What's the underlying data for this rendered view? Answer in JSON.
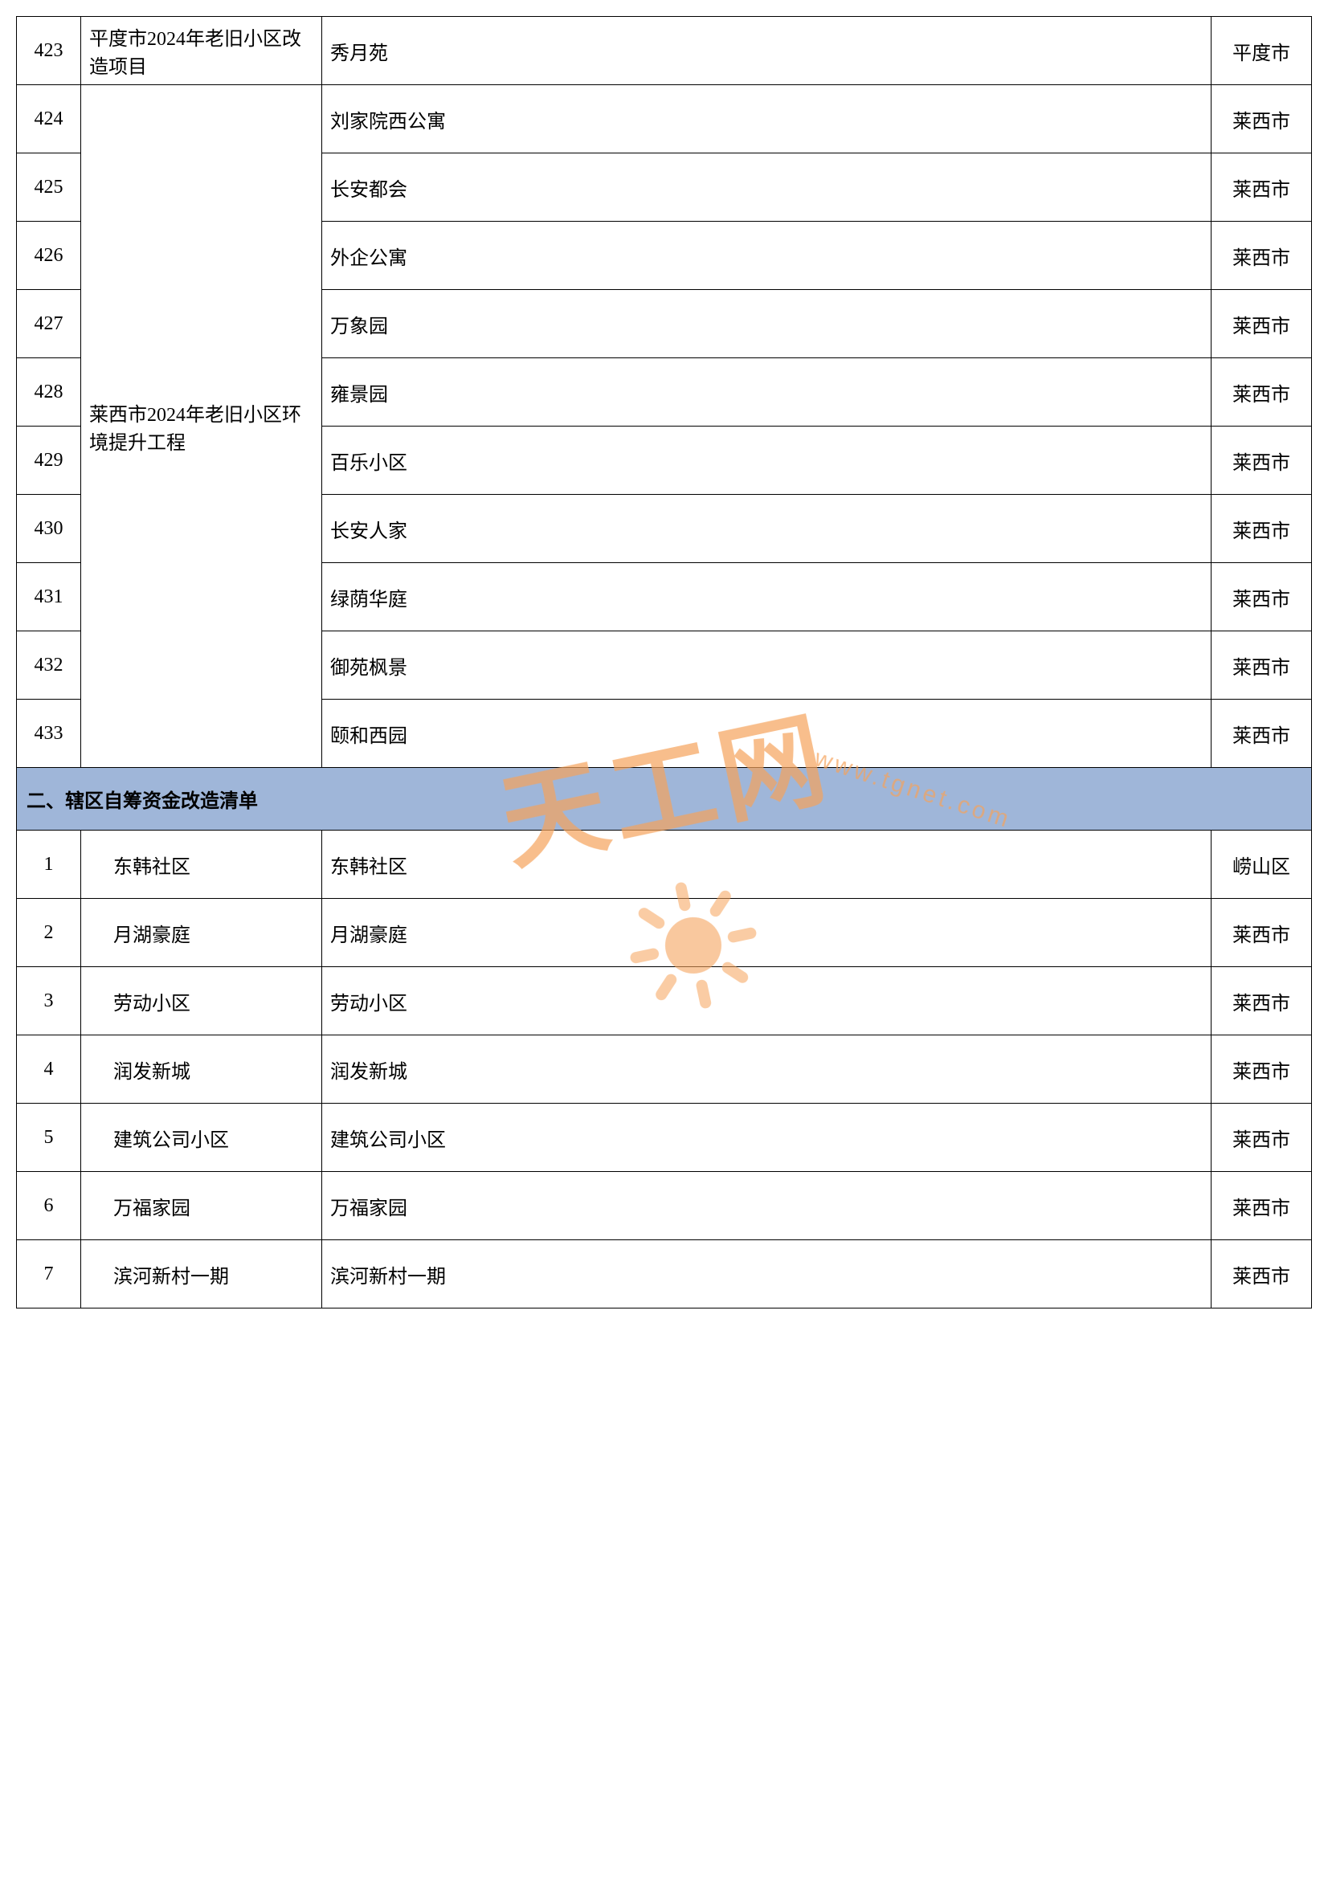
{
  "colors": {
    "header_bg": "#9fb6d9",
    "border": "#000000",
    "text": "#000000",
    "watermark": "#f5a25a",
    "background": "#ffffff"
  },
  "table1": {
    "rows": [
      {
        "num": "423",
        "project": "平度市2024年老旧小区改造项目",
        "community": "秀月苑",
        "district": "平度市",
        "rowspan_project": 1
      },
      {
        "num": "424",
        "project": "莱西市2024年老旧小区环境提升工程",
        "community": "刘家院西公寓",
        "district": "莱西市",
        "rowspan_project": 10
      },
      {
        "num": "425",
        "community": "长安都会",
        "district": "莱西市"
      },
      {
        "num": "426",
        "community": "外企公寓",
        "district": "莱西市"
      },
      {
        "num": "427",
        "community": "万象园",
        "district": "莱西市"
      },
      {
        "num": "428",
        "community": "雍景园",
        "district": "莱西市"
      },
      {
        "num": "429",
        "community": "百乐小区",
        "district": "莱西市"
      },
      {
        "num": "430",
        "community": "长安人家",
        "district": "莱西市"
      },
      {
        "num": "431",
        "community": "绿荫华庭",
        "district": "莱西市"
      },
      {
        "num": "432",
        "community": "御苑枫景",
        "district": "莱西市"
      },
      {
        "num": "433",
        "community": "颐和西园",
        "district": "莱西市"
      }
    ]
  },
  "section2_title": "二、辖区自筹资金改造清单",
  "table2": {
    "rows": [
      {
        "num": "1",
        "project": "东韩社区",
        "community": "东韩社区",
        "district": "崂山区"
      },
      {
        "num": "2",
        "project": "月湖豪庭",
        "community": "月湖豪庭",
        "district": "莱西市"
      },
      {
        "num": "3",
        "project": "劳动小区",
        "community": "劳动小区",
        "district": "莱西市"
      },
      {
        "num": "4",
        "project": "润发新城",
        "community": "润发新城",
        "district": "莱西市"
      },
      {
        "num": "5",
        "project": "建筑公司小区",
        "community": "建筑公司小区",
        "district": "莱西市"
      },
      {
        "num": "6",
        "project": "万福家园",
        "community": "万福家园",
        "district": "莱西市"
      },
      {
        "num": "7",
        "project": "滨河新村一期",
        "community": "滨河新村一期",
        "district": "莱西市"
      }
    ]
  },
  "watermark": {
    "text": "天工网",
    "url": "www.tgnet.com"
  }
}
